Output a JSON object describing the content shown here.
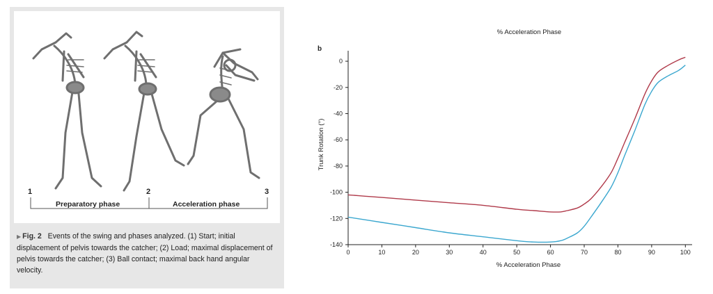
{
  "left_figure": {
    "event_numbers": [
      "1",
      "2",
      "3"
    ],
    "phase_labels": [
      "Preparatory phase",
      "Acceleration phase"
    ],
    "caption": {
      "fig_label": "Fig. 2",
      "text": "Events of the swing and phases analyzed. (1) Start; initial displacement of pelvis towards the catcher; (2) Load; maximal displacement of pelvis towards the catcher; (3) Ball contact; maximal back hand angular velocity."
    }
  },
  "chart_data": {
    "type": "line",
    "panel_label": "b",
    "title": "% Acceleration Phase",
    "xlabel": "% Acceleration Phase",
    "ylabel": "Trunk Rotation (°)",
    "xlim": [
      0,
      102
    ],
    "ylim": [
      -140,
      8
    ],
    "xticks": [
      0,
      10,
      20,
      30,
      40,
      50,
      60,
      70,
      80,
      90,
      100
    ],
    "yticks": [
      0,
      -20,
      -40,
      -60,
      -80,
      -100,
      -120,
      -140
    ],
    "grid": false,
    "series": [
      {
        "color": "#b03a4a",
        "x": [
          0,
          5,
          10,
          20,
          30,
          40,
          50,
          55,
          60,
          63,
          65,
          68,
          70,
          72,
          75,
          78,
          80,
          82,
          85,
          88,
          90,
          92,
          95,
          98,
          100
        ],
        "y": [
          -102,
          -103,
          -104,
          -106,
          -108,
          -110,
          -113,
          -114,
          -115,
          -115,
          -114,
          -112,
          -109,
          -105,
          -96,
          -85,
          -74,
          -62,
          -44,
          -25,
          -15,
          -8,
          -3,
          1,
          3
        ]
      },
      {
        "color": "#3ba7cf",
        "x": [
          0,
          5,
          10,
          20,
          30,
          40,
          50,
          55,
          60,
          63,
          65,
          68,
          70,
          72,
          75,
          78,
          80,
          82,
          85,
          88,
          90,
          92,
          95,
          98,
          100
        ],
        "y": [
          -119,
          -121,
          -123,
          -127,
          -131,
          -134,
          -137,
          -138,
          -138,
          -137,
          -135,
          -131,
          -126,
          -119,
          -108,
          -96,
          -85,
          -72,
          -53,
          -33,
          -23,
          -16,
          -11,
          -7,
          -3
        ]
      }
    ]
  }
}
